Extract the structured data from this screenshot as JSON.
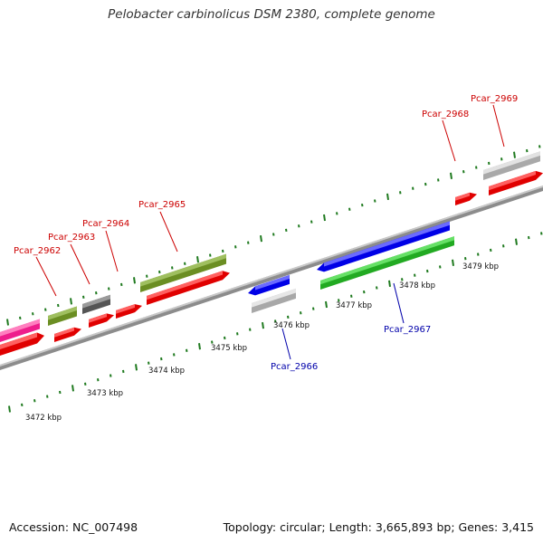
{
  "title": "Pelobacter carbinolicus DSM 2380, complete genome",
  "footer": {
    "accession": "Accession: NC_007498",
    "stats": "Topology: circular; Length: 3,665,893 bp; Genes: 3,415"
  },
  "colors": {
    "forward_gene_label": "#cc0000",
    "reverse_gene_label": "#0000aa",
    "tick": "#1f7a1f",
    "backbone": "#8a8a8a"
  },
  "kbp_labels": [
    "3472 kbp",
    "3473 kbp",
    "3474 kbp",
    "3475 kbp",
    "3476 kbp",
    "3477 kbp",
    "3478 kbp",
    "3479 kbp"
  ],
  "gene_labels": [
    {
      "text": "Pcar_2962",
      "strand": "forward"
    },
    {
      "text": "Pcar_2963",
      "strand": "forward"
    },
    {
      "text": "Pcar_2964",
      "strand": "forward"
    },
    {
      "text": "Pcar_2965",
      "strand": "forward"
    },
    {
      "text": "Pcar_2966",
      "strand": "reverse"
    },
    {
      "text": "Pcar_2967",
      "strand": "reverse"
    },
    {
      "text": "Pcar_2968",
      "strand": "forward"
    },
    {
      "text": "Pcar_2969",
      "strand": "forward"
    }
  ]
}
